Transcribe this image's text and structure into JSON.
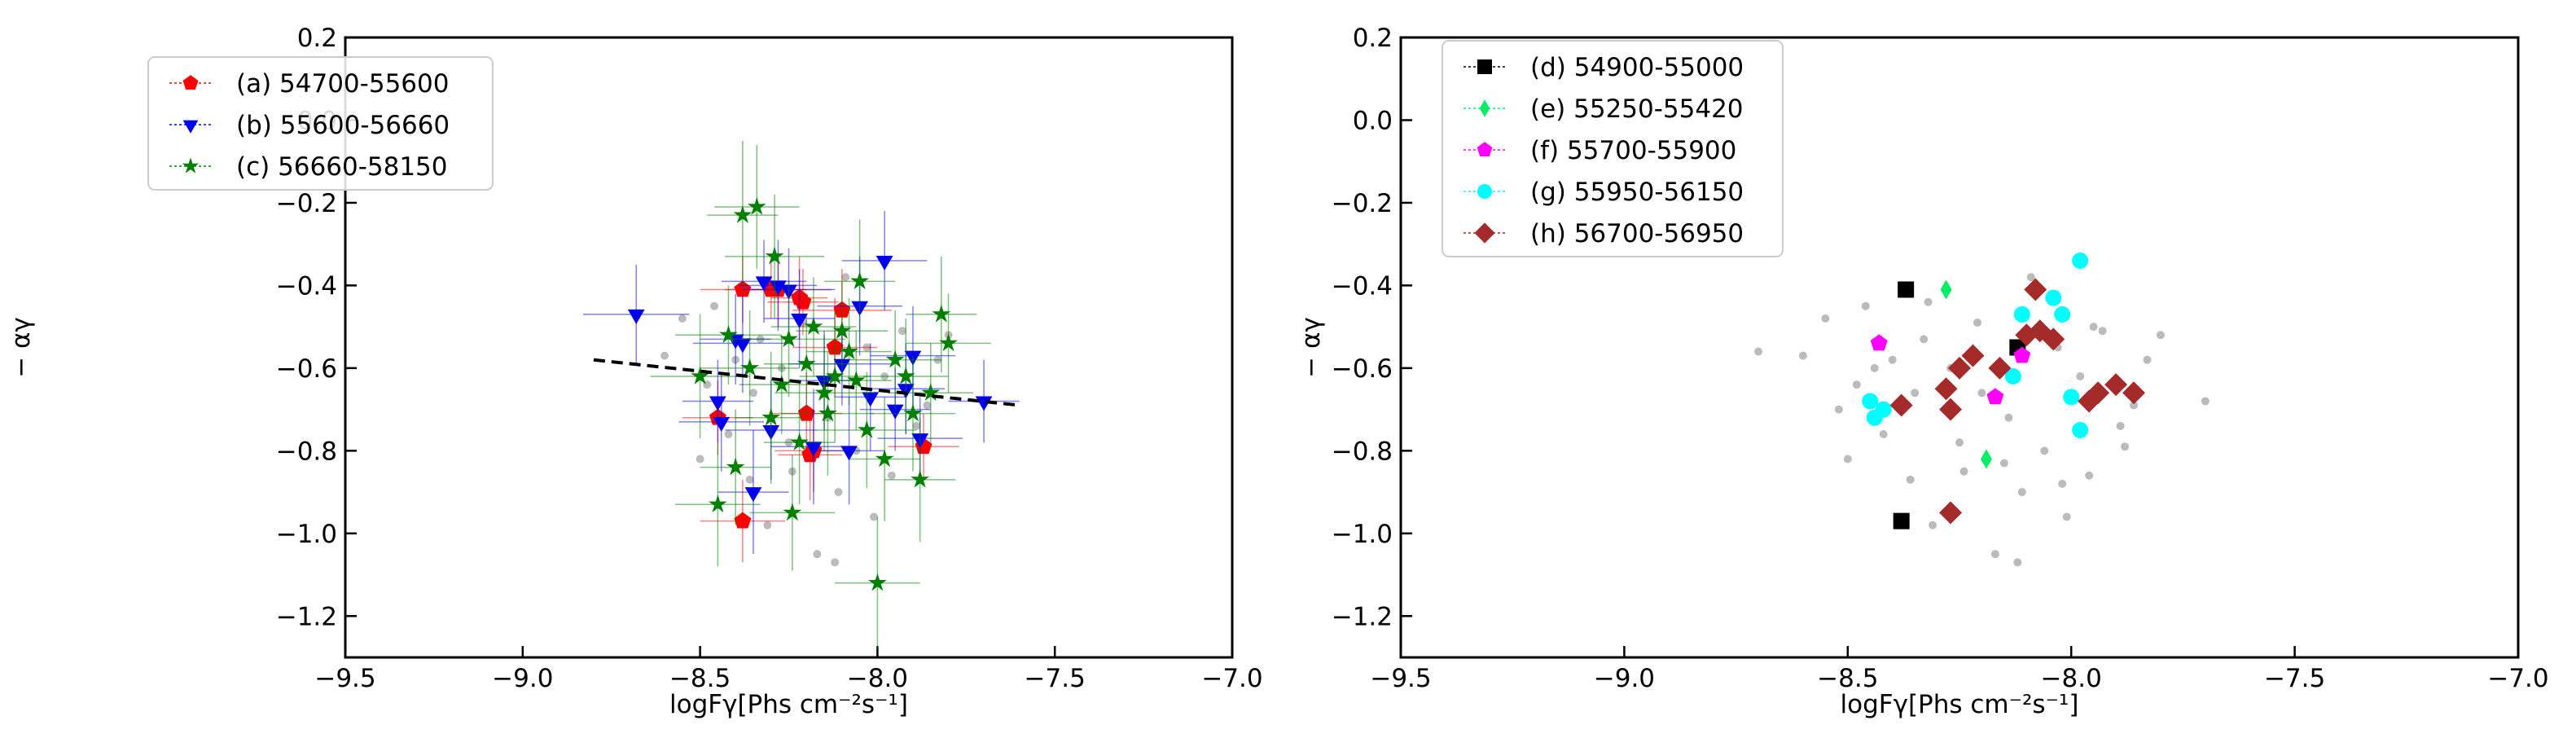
{
  "chart_data": [
    {
      "type": "scatter",
      "xlabel": "logFγ[Phs cm⁻²s⁻¹]",
      "ylabel": "− αγ",
      "xlim": [
        -9.5,
        -7.0
      ],
      "ylim": [
        -1.3,
        0.2
      ],
      "xticks": [
        {
          "value": -9.5,
          "label": "−9.5"
        },
        {
          "value": -9.0,
          "label": "−9.0"
        },
        {
          "value": -8.5,
          "label": "−8.5"
        },
        {
          "value": -8.0,
          "label": "−8.0"
        },
        {
          "value": -7.5,
          "label": "−7.5"
        },
        {
          "value": -7.0,
          "label": "−7.0"
        }
      ],
      "yticks": [
        0.2,
        {
          "value": 0.0,
          "label": "0.0"
        },
        {
          "value": -0.2,
          "label": "−0.2"
        },
        {
          "value": -0.4,
          "label": "−0.4"
        },
        {
          "value": -0.6,
          "label": "−0.6"
        },
        {
          "value": -0.8,
          "label": "−0.8"
        },
        {
          "value": -1.0,
          "label": "−1.0"
        },
        {
          "value": -1.2,
          "label": "−1.2"
        }
      ],
      "legend": "upper left",
      "series": [
        {
          "color": "#bbbbbb",
          "marker": "circle",
          "x": [
            -8.6,
            -8.55,
            -8.5,
            -8.48,
            -8.46,
            -8.42,
            -8.4,
            -8.36,
            -8.33,
            -8.31,
            -8.27,
            -8.24,
            -8.21,
            -8.17,
            -8.14,
            -8.11,
            -8.09,
            -8.06,
            -8.03,
            -8.01,
            -7.98,
            -7.96,
            -7.93,
            -7.89,
            -7.86,
            -7.83,
            -7.8,
            -8.35,
            -8.25,
            -8.12
          ],
          "values": [
            -0.57,
            -0.48,
            -0.82,
            -0.64,
            -0.45,
            -0.76,
            -0.58,
            -0.87,
            -0.53,
            -0.98,
            -0.6,
            -0.85,
            -0.49,
            -1.05,
            -0.72,
            -0.9,
            -0.38,
            -0.8,
            -0.55,
            -0.96,
            -0.62,
            -0.86,
            -0.51,
            -0.74,
            -0.69,
            -0.58,
            -0.52,
            -0.66,
            -0.78,
            -1.07
          ]
        },
        {
          "name": "(a) 54700-55600",
          "color": "#ff0000",
          "marker": "pentagon",
          "x": [
            -8.38,
            -8.3,
            -8.28,
            -8.22,
            -8.21,
            -8.12,
            -8.2,
            -8.19,
            -8.18,
            -8.45,
            -8.38,
            -7.87,
            -8.1
          ],
          "values": [
            -0.41,
            -0.41,
            -0.41,
            -0.43,
            -0.44,
            -0.55,
            -0.71,
            -0.81,
            -0.8,
            -0.72,
            -0.97,
            -0.79,
            -0.46
          ],
          "xerr": [
            0.12,
            0.1,
            0.15,
            0.08,
            0.1,
            0.12,
            0.1,
            0.09,
            0.11,
            0.1,
            0.12,
            0.1,
            0.14
          ],
          "yerr": [
            0.08,
            0.07,
            0.09,
            0.1,
            0.08,
            0.12,
            0.1,
            0.11,
            0.1,
            0.09,
            0.1,
            0.08,
            0.1
          ]
        },
        {
          "name": "(b) 55600-56660",
          "color": "#0000ee",
          "marker": "triangle-down",
          "x": [
            -8.68,
            -8.45,
            -8.44,
            -8.4,
            -8.38,
            -8.35,
            -8.32,
            -8.28,
            -8.25,
            -8.22,
            -8.18,
            -8.15,
            -8.1,
            -8.05,
            -8.02,
            -7.98,
            -7.95,
            -7.92,
            -7.9,
            -7.7,
            -8.3,
            -8.08,
            -7.88
          ],
          "values": [
            -0.47,
            -0.68,
            -0.73,
            -0.53,
            -0.54,
            -0.9,
            -0.39,
            -0.4,
            -0.41,
            -0.48,
            -0.79,
            -0.63,
            -0.59,
            -0.45,
            -0.67,
            -0.34,
            -0.7,
            -0.65,
            -0.57,
            -0.68,
            -0.75,
            -0.8,
            -0.77
          ],
          "xerr": [
            0.15,
            0.1,
            0.12,
            0.1,
            0.14,
            0.1,
            0.12,
            0.11,
            0.13,
            0.1,
            0.12,
            0.1,
            0.15,
            0.12,
            0.1,
            0.12,
            0.1,
            0.11,
            0.12,
            0.1,
            0.13,
            0.1,
            0.12
          ],
          "yerr": [
            0.12,
            0.1,
            0.12,
            0.11,
            0.12,
            0.15,
            0.1,
            0.11,
            0.1,
            0.12,
            0.14,
            0.12,
            0.1,
            0.12,
            0.13,
            0.12,
            0.1,
            0.11,
            0.12,
            0.1,
            0.12,
            0.13,
            0.1
          ]
        },
        {
          "name": "(c) 56660-58150",
          "color": "#008000",
          "marker": "star",
          "x": [
            -8.45,
            -8.42,
            -8.38,
            -8.34,
            -8.36,
            -8.3,
            -8.27,
            -8.25,
            -8.22,
            -8.2,
            -8.15,
            -8.12,
            -8.1,
            -8.08,
            -8.05,
            -8.03,
            -8.0,
            -7.98,
            -7.95,
            -7.92,
            -7.88,
            -7.85,
            -7.82,
            -7.8,
            -8.5,
            -8.4,
            -8.18,
            -8.14,
            -7.9,
            -8.06,
            -8.29,
            -8.24
          ],
          "values": [
            -0.93,
            -0.52,
            -0.23,
            -0.21,
            -0.6,
            -0.72,
            -0.64,
            -0.53,
            -0.78,
            -0.59,
            -0.66,
            -0.62,
            -0.51,
            -0.56,
            -0.39,
            -0.75,
            -1.12,
            -0.82,
            -0.58,
            -0.62,
            -0.87,
            -0.66,
            -0.47,
            -0.54,
            -0.62,
            -0.84,
            -0.5,
            -0.71,
            -0.71,
            -0.63,
            -0.33,
            -0.95
          ],
          "xerr": [
            0.12,
            0.15,
            0.1,
            0.12,
            0.14,
            0.1,
            0.12,
            0.16,
            0.1,
            0.12,
            0.14,
            0.1,
            0.13,
            0.12,
            0.1,
            0.14,
            0.12,
            0.1,
            0.13,
            0.12,
            0.1,
            0.12,
            0.1,
            0.12,
            0.14,
            0.1,
            0.12,
            0.13,
            0.12,
            0.1,
            0.14,
            0.12
          ],
          "yerr": [
            0.15,
            0.12,
            0.18,
            0.15,
            0.14,
            0.16,
            0.12,
            0.14,
            0.15,
            0.12,
            0.14,
            0.16,
            0.12,
            0.13,
            0.15,
            0.14,
            0.16,
            0.15,
            0.12,
            0.14,
            0.15,
            0.12,
            0.14,
            0.12,
            0.15,
            0.14,
            0.12,
            0.15,
            0.14,
            0.12,
            0.15,
            0.14
          ]
        },
        {
          "type": "line",
          "color": "#000000",
          "dash": true,
          "x": [
            -8.8,
            -7.6
          ],
          "values": [
            -0.58,
            -0.69
          ]
        }
      ]
    },
    {
      "type": "scatter",
      "xlabel": "logFγ[Phs cm⁻²s⁻¹]",
      "ylabel": "− αγ",
      "xlim": [
        -9.5,
        -7.0
      ],
      "ylim": [
        -1.3,
        0.2
      ],
      "xticks": [
        {
          "value": -9.5,
          "label": "−9.5"
        },
        {
          "value": -9.0,
          "label": "−9.0"
        },
        {
          "value": -8.5,
          "label": "−8.5"
        },
        {
          "value": -8.0,
          "label": "−8.0"
        },
        {
          "value": -7.5,
          "label": "−7.5"
        },
        {
          "value": -7.0,
          "label": "−7.0"
        }
      ],
      "yticks": [
        0.2,
        {
          "value": 0.0,
          "label": "0.0"
        },
        {
          "value": -0.2,
          "label": "−0.2"
        },
        {
          "value": -0.4,
          "label": "−0.4"
        },
        {
          "value": -0.6,
          "label": "−0.6"
        },
        {
          "value": -0.8,
          "label": "−0.8"
        },
        {
          "value": -1.0,
          "label": "−1.0"
        },
        {
          "value": -1.2,
          "label": "−1.2"
        }
      ],
      "legend": "upper left",
      "series": [
        {
          "color": "#bbbbbb",
          "marker": "circle",
          "x": [
            -8.6,
            -8.55,
            -8.5,
            -8.48,
            -8.46,
            -8.42,
            -8.4,
            -8.36,
            -8.33,
            -8.31,
            -8.27,
            -8.24,
            -8.21,
            -8.17,
            -8.14,
            -8.11,
            -8.09,
            -8.06,
            -8.03,
            -8.01,
            -7.98,
            -7.96,
            -7.93,
            -7.89,
            -7.86,
            -7.83,
            -7.8,
            -8.35,
            -8.25,
            -8.12,
            -8.52,
            -8.44,
            -8.32,
            -8.2,
            -8.15,
            -8.02,
            -7.95,
            -7.88,
            -8.7,
            -7.7
          ],
          "values": [
            -0.57,
            -0.48,
            -0.82,
            -0.64,
            -0.45,
            -0.76,
            -0.58,
            -0.87,
            -0.53,
            -0.98,
            -0.6,
            -0.85,
            -0.49,
            -1.05,
            -0.72,
            -0.9,
            -0.38,
            -0.8,
            -0.55,
            -0.96,
            -0.62,
            -0.86,
            -0.51,
            -0.74,
            -0.69,
            -0.58,
            -0.52,
            -0.66,
            -0.78,
            -1.07,
            -0.7,
            -0.6,
            -0.44,
            -0.66,
            -0.83,
            -0.88,
            -0.5,
            -0.79,
            -0.56,
            -0.68
          ]
        },
        {
          "name": "(d) 54900-55000",
          "color": "#000000",
          "marker": "square",
          "x": [
            -8.37,
            -8.12,
            -8.38
          ],
          "values": [
            -0.41,
            -0.55,
            -0.97
          ]
        },
        {
          "name": "(e) 55250-55420",
          "color": "#00ee66",
          "marker": "diamond-thin",
          "x": [
            -8.28,
            -8.19
          ],
          "values": [
            -0.41,
            -0.82
          ]
        },
        {
          "name": "(f) 55700-55900",
          "color": "#ff00ff",
          "marker": "pentagon",
          "x": [
            -8.43,
            -8.11,
            -8.17
          ],
          "values": [
            -0.54,
            -0.57,
            -0.67
          ]
        },
        {
          "name": "(g) 55950-56150",
          "color": "#00ffff",
          "marker": "circle",
          "x": [
            -8.45,
            -8.44,
            -8.42,
            -8.11,
            -8.04,
            -8.02,
            -8.0,
            -7.98,
            -7.98,
            -8.13
          ],
          "values": [
            -0.68,
            -0.72,
            -0.7,
            -0.47,
            -0.43,
            -0.47,
            -0.67,
            -0.34,
            -0.75,
            -0.62
          ]
        },
        {
          "name": "(h) 56700-56950",
          "color": "#a52a2a",
          "marker": "diamond",
          "x": [
            -8.08,
            -8.1,
            -8.07,
            -8.04,
            -8.22,
            -8.25,
            -8.28,
            -8.38,
            -8.27,
            -8.27,
            -7.96,
            -7.94,
            -7.9,
            -7.86,
            -8.16
          ],
          "values": [
            -0.41,
            -0.52,
            -0.51,
            -0.53,
            -0.57,
            -0.6,
            -0.65,
            -0.69,
            -0.7,
            -0.95,
            -0.68,
            -0.66,
            -0.64,
            -0.66,
            -0.6
          ]
        }
      ]
    }
  ]
}
